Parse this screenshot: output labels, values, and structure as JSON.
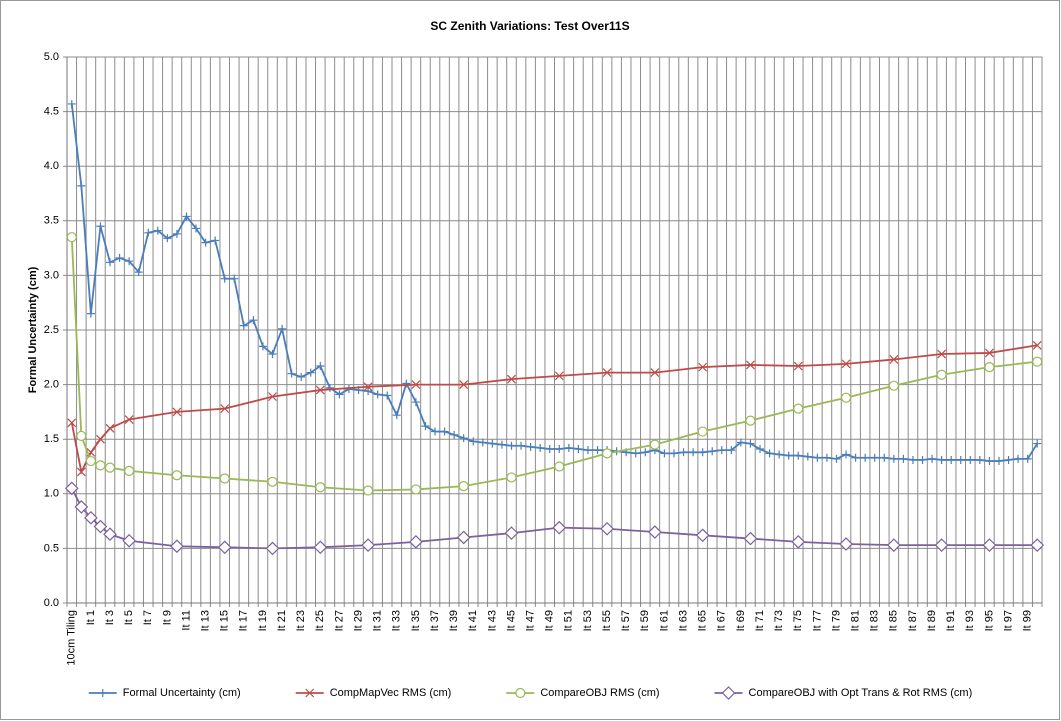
{
  "chart_data": {
    "type": "line",
    "title": "SC Zenith Variations: Test Over11S",
    "y_label": "Formal Uncertainty (cm)",
    "categories": [
      "10cm Tiling",
      null,
      "It 1",
      null,
      "It 3",
      null,
      "It 5",
      null,
      "It 7",
      null,
      "It 9",
      null,
      "It 11",
      null,
      "It 13",
      null,
      "It 15",
      null,
      "It 17",
      null,
      "It 19",
      null,
      "It 21",
      null,
      "It 23",
      null,
      "It 25",
      null,
      "It 27",
      null,
      "It 29",
      null,
      "It 31",
      null,
      "It 33",
      null,
      "It 35",
      null,
      "It 37",
      null,
      "It 39",
      null,
      "It 41",
      null,
      "It 43",
      null,
      "It 45",
      null,
      "It 47",
      null,
      "It 49",
      null,
      "It 51",
      null,
      "It 53",
      null,
      "It 55",
      null,
      "It 57",
      null,
      "It 59",
      null,
      "It 61",
      null,
      "It 63",
      null,
      "It 65",
      null,
      "It 67",
      null,
      "It 69",
      null,
      "It 71",
      null,
      "It 73",
      null,
      "It 75",
      null,
      "It 77",
      null,
      "It 79",
      null,
      "It 81",
      null,
      "It 83",
      null,
      "It 85",
      null,
      "It 87",
      null,
      "It 89",
      null,
      "It 91",
      null,
      "It 93",
      null,
      "It 95",
      null,
      "It 97",
      null,
      "It 99",
      null
    ],
    "ylim": [
      0,
      5
    ],
    "yticks": [
      {
        "value": 0,
        "label": "0.0"
      },
      {
        "value": 0.5,
        "label": "0.5"
      },
      {
        "value": 1,
        "label": "1.0"
      },
      {
        "value": 1.5,
        "label": "1.5"
      },
      {
        "value": 2,
        "label": "2.0"
      },
      {
        "value": 2.5,
        "label": "2.5"
      },
      {
        "value": 3,
        "label": "3.0"
      },
      {
        "value": 3.5,
        "label": "3.5"
      },
      {
        "value": 4,
        "label": "4.0"
      },
      {
        "value": 4.5,
        "label": "4.5"
      },
      {
        "value": 5,
        "label": "5.0"
      }
    ],
    "grid": true,
    "legend": "bottom",
    "series": [
      {
        "name": "Formal Uncertainty (cm)",
        "color": "#4a7ebb",
        "marker": "plus",
        "values": [
          4.57,
          3.82,
          2.65,
          3.45,
          3.12,
          3.16,
          3.13,
          3.03,
          3.39,
          3.41,
          3.34,
          3.38,
          3.54,
          3.43,
          3.3,
          3.32,
          2.97,
          2.97,
          2.54,
          2.59,
          2.35,
          2.28,
          2.51,
          2.1,
          2.07,
          2.11,
          2.17,
          1.97,
          1.91,
          1.96,
          1.95,
          1.94,
          1.91,
          1.9,
          1.72,
          2.01,
          1.84,
          1.62,
          1.57,
          1.57,
          1.54,
          1.51,
          1.48,
          1.47,
          1.46,
          1.45,
          1.44,
          1.44,
          1.43,
          1.42,
          1.41,
          1.41,
          1.42,
          1.41,
          1.4,
          1.4,
          1.4,
          1.39,
          1.38,
          1.37,
          1.38,
          1.4,
          1.37,
          1.37,
          1.38,
          1.38,
          1.38,
          1.39,
          1.4,
          1.4,
          1.47,
          1.46,
          1.41,
          1.37,
          1.36,
          1.35,
          1.35,
          1.34,
          1.33,
          1.33,
          1.32,
          1.36,
          1.33,
          1.33,
          1.33,
          1.33,
          1.32,
          1.32,
          1.31,
          1.31,
          1.32,
          1.31,
          1.31,
          1.31,
          1.31,
          1.31,
          1.3,
          1.3,
          1.31,
          1.32,
          1.32,
          1.46
        ]
      },
      {
        "name": "CompMapVec RMS (cm)",
        "color": "#be4b48",
        "marker": "x",
        "values": [
          1.65,
          1.2,
          1.38,
          1.5,
          1.6,
          null,
          1.68,
          null,
          null,
          null,
          null,
          1.75,
          null,
          null,
          null,
          null,
          1.78,
          null,
          null,
          null,
          null,
          1.89,
          null,
          null,
          null,
          null,
          1.95,
          null,
          null,
          null,
          null,
          1.98,
          null,
          null,
          null,
          null,
          2.0,
          null,
          null,
          null,
          null,
          2.0,
          null,
          null,
          null,
          null,
          2.05,
          null,
          null,
          null,
          null,
          2.08,
          null,
          null,
          null,
          null,
          2.11,
          null,
          null,
          null,
          null,
          2.11,
          null,
          null,
          null,
          null,
          2.16,
          null,
          null,
          null,
          null,
          2.18,
          null,
          null,
          null,
          null,
          2.17,
          null,
          null,
          null,
          null,
          2.19,
          null,
          null,
          null,
          null,
          2.23,
          null,
          null,
          null,
          null,
          2.28,
          null,
          null,
          null,
          null,
          2.29,
          null,
          null,
          null,
          null,
          2.36
        ]
      },
      {
        "name": "CompareOBJ RMS (cm)",
        "color": "#98b954",
        "marker": "circle",
        "values": [
          3.35,
          1.53,
          1.3,
          1.26,
          1.24,
          null,
          1.21,
          null,
          null,
          null,
          null,
          1.17,
          null,
          null,
          null,
          null,
          1.14,
          null,
          null,
          null,
          null,
          1.11,
          null,
          null,
          null,
          null,
          1.06,
          null,
          null,
          null,
          null,
          1.03,
          null,
          null,
          null,
          null,
          1.04,
          null,
          null,
          null,
          null,
          1.07,
          null,
          null,
          null,
          null,
          1.15,
          null,
          null,
          null,
          null,
          1.25,
          null,
          null,
          null,
          null,
          1.37,
          null,
          null,
          null,
          null,
          1.45,
          null,
          null,
          null,
          null,
          1.57,
          null,
          null,
          null,
          null,
          1.67,
          null,
          null,
          null,
          null,
          1.78,
          null,
          null,
          null,
          null,
          1.88,
          null,
          null,
          null,
          null,
          1.99,
          null,
          null,
          null,
          null,
          2.09,
          null,
          null,
          null,
          null,
          2.16,
          null,
          null,
          null,
          null,
          2.21
        ]
      },
      {
        "name": "CompareOBJ with Opt Trans & Rot RMS (cm)",
        "color": "#7d60a0",
        "marker": "diamond",
        "values": [
          1.05,
          0.88,
          0.78,
          0.7,
          0.63,
          null,
          0.57,
          null,
          null,
          null,
          null,
          0.52,
          null,
          null,
          null,
          null,
          0.51,
          null,
          null,
          null,
          null,
          0.5,
          null,
          null,
          null,
          null,
          0.51,
          null,
          null,
          null,
          null,
          0.53,
          null,
          null,
          null,
          null,
          0.56,
          null,
          null,
          null,
          null,
          0.6,
          null,
          null,
          null,
          null,
          0.64,
          null,
          null,
          null,
          null,
          0.69,
          null,
          null,
          null,
          null,
          0.68,
          null,
          null,
          null,
          null,
          0.65,
          null,
          null,
          null,
          null,
          0.62,
          null,
          null,
          null,
          null,
          0.59,
          null,
          null,
          null,
          null,
          0.56,
          null,
          null,
          null,
          null,
          0.54,
          null,
          null,
          null,
          null,
          0.53,
          null,
          null,
          null,
          null,
          0.53,
          null,
          null,
          null,
          null,
          0.53,
          null,
          null,
          null,
          null,
          0.53
        ]
      }
    ]
  }
}
